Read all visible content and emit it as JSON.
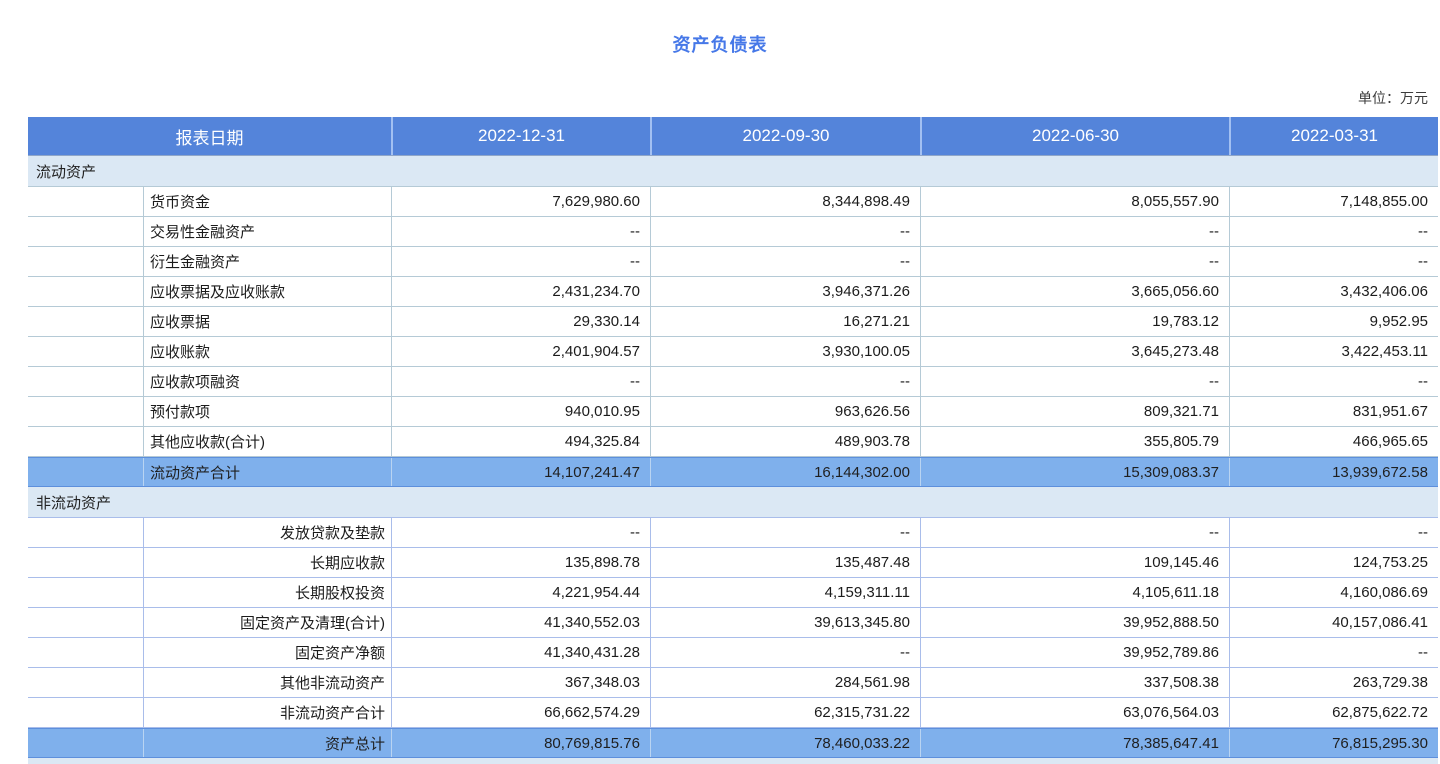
{
  "title": "资产负债表",
  "unit_label": "单位：万元",
  "colors": {
    "title_blue": "#4678e8",
    "header_bg": "#5484da",
    "header_text": "#ffffff",
    "section_bg": "#dbe8f4",
    "highlight_bg": "#7fb0ec",
    "border_current_section": "#b5cad6",
    "border_noncurrent_section": "#a9bdea"
  },
  "chart_data": {
    "type": "table",
    "title": "资产负债表",
    "unit": "万元",
    "columns": [
      "报表日期",
      "2022-12-31",
      "2022-09-30",
      "2022-06-30",
      "2022-03-31"
    ],
    "sections": [
      {
        "name": "流动资产",
        "rows": [
          {
            "label": "货币资金",
            "values": [
              7629980.6,
              8344898.49,
              8055557.9,
              7148855.0
            ]
          },
          {
            "label": "交易性金融资产",
            "values": [
              null,
              null,
              null,
              null
            ]
          },
          {
            "label": "衍生金融资产",
            "values": [
              null,
              null,
              null,
              null
            ]
          },
          {
            "label": "应收票据及应收账款",
            "values": [
              2431234.7,
              3946371.26,
              3665056.6,
              3432406.06
            ]
          },
          {
            "label": "应收票据",
            "values": [
              29330.14,
              16271.21,
              19783.12,
              9952.95
            ]
          },
          {
            "label": "应收账款",
            "values": [
              2401904.57,
              3930100.05,
              3645273.48,
              3422453.11
            ]
          },
          {
            "label": "应收款项融资",
            "values": [
              null,
              null,
              null,
              null
            ]
          },
          {
            "label": "预付款项",
            "values": [
              940010.95,
              963626.56,
              809321.71,
              831951.67
            ]
          },
          {
            "label": "其他应收款(合计)",
            "values": [
              494325.84,
              489903.78,
              355805.79,
              466965.65
            ]
          },
          {
            "label": "流动资产合计",
            "values": [
              14107241.47,
              16144302.0,
              15309083.37,
              13939672.58
            ]
          }
        ]
      },
      {
        "name": "非流动资产",
        "rows": [
          {
            "label": "发放贷款及垫款",
            "values": [
              null,
              null,
              null,
              null
            ]
          },
          {
            "label": "长期应收款",
            "values": [
              135898.78,
              135487.48,
              109145.46,
              124753.25
            ]
          },
          {
            "label": "长期股权投资",
            "values": [
              4221954.44,
              4159311.11,
              4105611.18,
              4160086.69
            ]
          },
          {
            "label": "固定资产及清理(合计)",
            "values": [
              41340552.03,
              39613345.8,
              39952888.5,
              40157086.41
            ]
          },
          {
            "label": "固定资产净额",
            "values": [
              41340431.28,
              null,
              39952789.86,
              null
            ]
          },
          {
            "label": "其他非流动资产",
            "values": [
              367348.03,
              284561.98,
              337508.38,
              263729.38
            ]
          },
          {
            "label": "非流动资产合计",
            "values": [
              66662574.29,
              62315731.22,
              63076564.03,
              62875622.72
            ]
          },
          {
            "label": "资产总计",
            "values": [
              80769815.76,
              78460033.22,
              78385647.41,
              76815295.3
            ]
          }
        ]
      }
    ]
  },
  "table": {
    "header": [
      "报表日期",
      "2022-12-31",
      "2022-09-30",
      "2022-06-30",
      "2022-03-31"
    ],
    "rows": [
      {
        "type": "section",
        "label": "流动资产"
      },
      {
        "type": "data",
        "label": "货币资金",
        "values": [
          "7,629,980.60",
          "8,344,898.49",
          "8,055,557.90",
          "7,148,855.00"
        ]
      },
      {
        "type": "data",
        "label": "交易性金融资产",
        "values": [
          "--",
          "--",
          "--",
          "--"
        ]
      },
      {
        "type": "data",
        "label": "衍生金融资产",
        "values": [
          "--",
          "--",
          "--",
          "--"
        ]
      },
      {
        "type": "data",
        "label": "应收票据及应收账款",
        "values": [
          "2,431,234.70",
          "3,946,371.26",
          "3,665,056.60",
          "3,432,406.06"
        ]
      },
      {
        "type": "data",
        "label": "应收票据",
        "values": [
          "29,330.14",
          "16,271.21",
          "19,783.12",
          "9,952.95"
        ]
      },
      {
        "type": "data",
        "label": "应收账款",
        "values": [
          "2,401,904.57",
          "3,930,100.05",
          "3,645,273.48",
          "3,422,453.11"
        ]
      },
      {
        "type": "data",
        "label": "应收款项融资",
        "values": [
          "--",
          "--",
          "--",
          "--"
        ]
      },
      {
        "type": "data",
        "label": "预付款项",
        "values": [
          "940,010.95",
          "963,626.56",
          "809,321.71",
          "831,951.67"
        ]
      },
      {
        "type": "data",
        "label": "其他应收款(合计)",
        "values": [
          "494,325.84",
          "489,903.78",
          "355,805.79",
          "466,965.65"
        ]
      },
      {
        "type": "subtotal",
        "label": "流动资产合计",
        "values": [
          "14,107,241.47",
          "16,144,302.00",
          "15,309,083.37",
          "13,939,672.58"
        ]
      },
      {
        "type": "section",
        "label": "非流动资产"
      },
      {
        "type": "data",
        "label": "发放贷款及垫款",
        "values": [
          "--",
          "--",
          "--",
          "--"
        ]
      },
      {
        "type": "data",
        "label": "长期应收款",
        "values": [
          "135,898.78",
          "135,487.48",
          "109,145.46",
          "124,753.25"
        ]
      },
      {
        "type": "data",
        "label": "长期股权投资",
        "values": [
          "4,221,954.44",
          "4,159,311.11",
          "4,105,611.18",
          "4,160,086.69"
        ]
      },
      {
        "type": "data",
        "label": "固定资产及清理(合计)",
        "values": [
          "41,340,552.03",
          "39,613,345.80",
          "39,952,888.50",
          "40,157,086.41"
        ]
      },
      {
        "type": "data",
        "label": "固定资产净额",
        "values": [
          "41,340,431.28",
          "--",
          "39,952,789.86",
          "--"
        ]
      },
      {
        "type": "data",
        "label": "其他非流动资产",
        "values": [
          "367,348.03",
          "284,561.98",
          "337,508.38",
          "263,729.38"
        ]
      },
      {
        "type": "data",
        "label": "非流动资产合计",
        "values": [
          "66,662,574.29",
          "62,315,731.22",
          "63,076,564.03",
          "62,875,622.72"
        ]
      },
      {
        "type": "total",
        "label": "资产总计",
        "values": [
          "80,769,815.76",
          "78,460,033.22",
          "78,385,647.41",
          "76,815,295.30"
        ]
      }
    ]
  }
}
